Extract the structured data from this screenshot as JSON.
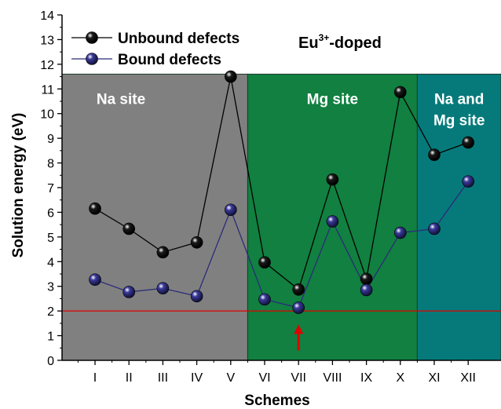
{
  "chart_data": {
    "type": "line",
    "title": "Eu3+-doped",
    "title_parts": {
      "base": "Eu",
      "superscript": "3+",
      "suffix": "-doped"
    },
    "xlabel": "Schemes",
    "ylabel": "Solution energy (eV)",
    "categories": [
      "I",
      "II",
      "III",
      "IV",
      "V",
      "VI",
      "VII",
      "VIII",
      "IX",
      "X",
      "XI",
      "XII"
    ],
    "ylim": [
      0,
      14
    ],
    "yticks": [
      "0",
      "1",
      "2",
      "3",
      "4",
      "5",
      "6",
      "7",
      "8",
      "9",
      "10",
      "11",
      "12",
      "13",
      "14"
    ],
    "legend_position": "top-left",
    "series": [
      {
        "name": "Unbound defects",
        "color": "#000000",
        "marker_color": "#1a1a1a",
        "values": [
          6.15,
          5.33,
          4.38,
          4.78,
          11.5,
          3.97,
          2.87,
          7.33,
          3.3,
          10.87,
          8.33,
          8.83
        ]
      },
      {
        "name": "Bound defects",
        "color": "#2b2b7a",
        "marker_color": "#3a3a9a",
        "values": [
          3.27,
          2.77,
          2.92,
          2.6,
          6.1,
          2.47,
          2.13,
          5.63,
          2.85,
          5.17,
          5.33,
          7.25
        ]
      }
    ],
    "regions": [
      {
        "label": "Na site",
        "from_category": "I",
        "to_category": "V",
        "color": "#808080"
      },
      {
        "label": "Mg site",
        "from_category": "VI",
        "to_category": "X",
        "color": "#118040"
      },
      {
        "label": "Na and Mg site",
        "label_lines": [
          "Na and",
          "Mg site"
        ],
        "from_category": "XI",
        "to_category": "XII",
        "color": "#067a7a"
      }
    ],
    "regions_top": 11.6,
    "reference_line": {
      "y": 2,
      "color": "#e00000"
    },
    "arrow": {
      "category": "VII",
      "from_y": 0.4,
      "to_y": 1.45,
      "color": "#e00000"
    },
    "grid": false
  }
}
